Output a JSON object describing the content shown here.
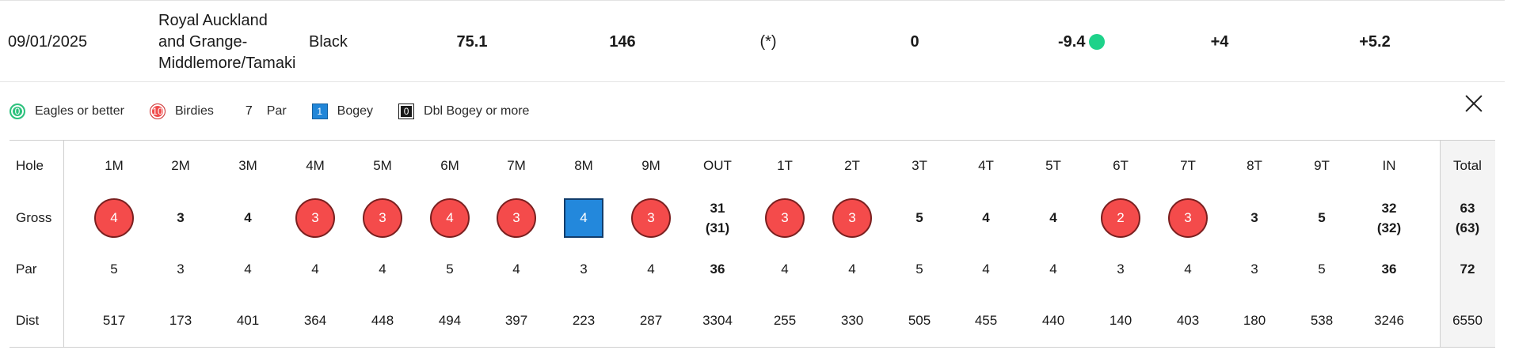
{
  "summary": {
    "date": "09/01/2025",
    "course": "Royal Auckland\nand Grange-\nMiddlemore/Tamaki",
    "tee": "Black",
    "rating": "75.1",
    "slope": "146",
    "flag": "(*)",
    "pcc": "0",
    "differential": "-9.4",
    "differential_dot_color": "#1ed28a",
    "adjustment": "+4",
    "index_change": "+5.2"
  },
  "legend": {
    "eagle_label": "Eagles or better",
    "eagle_value": "0",
    "birdie_label": "Birdies",
    "birdie_value": "10",
    "par_label": "Par",
    "par_value": "7",
    "bogey_label": "Bogey",
    "bogey_value": "1",
    "dbl_label": "Dbl Bogey or more",
    "dbl_value": "0"
  },
  "card": {
    "row_labels": {
      "hole": "Hole",
      "gross": "Gross",
      "par": "Par",
      "dist": "Dist"
    },
    "columns": [
      {
        "hole": "1M",
        "gross": "4",
        "style": "birdie",
        "par": "5",
        "dist": "517"
      },
      {
        "hole": "2M",
        "gross": "3",
        "style": "par",
        "par": "3",
        "dist": "173"
      },
      {
        "hole": "3M",
        "gross": "4",
        "style": "par",
        "par": "4",
        "dist": "401"
      },
      {
        "hole": "4M",
        "gross": "3",
        "style": "birdie",
        "par": "4",
        "dist": "364"
      },
      {
        "hole": "5M",
        "gross": "3",
        "style": "birdie",
        "par": "4",
        "dist": "448"
      },
      {
        "hole": "6M",
        "gross": "4",
        "style": "birdie",
        "par": "5",
        "dist": "494"
      },
      {
        "hole": "7M",
        "gross": "3",
        "style": "birdie",
        "par": "4",
        "dist": "397"
      },
      {
        "hole": "8M",
        "gross": "4",
        "style": "bogey",
        "par": "3",
        "dist": "223"
      },
      {
        "hole": "9M",
        "gross": "3",
        "style": "birdie",
        "par": "4",
        "dist": "287"
      },
      {
        "hole": "OUT",
        "gross": "31\n(31)",
        "style": "total",
        "par": "36",
        "dist": "3304"
      },
      {
        "hole": "1T",
        "gross": "3",
        "style": "birdie",
        "par": "4",
        "dist": "255"
      },
      {
        "hole": "2T",
        "gross": "3",
        "style": "birdie",
        "par": "4",
        "dist": "330"
      },
      {
        "hole": "3T",
        "gross": "5",
        "style": "par",
        "par": "5",
        "dist": "505"
      },
      {
        "hole": "4T",
        "gross": "4",
        "style": "par",
        "par": "4",
        "dist": "455"
      },
      {
        "hole": "5T",
        "gross": "4",
        "style": "par",
        "par": "4",
        "dist": "440"
      },
      {
        "hole": "6T",
        "gross": "2",
        "style": "birdie",
        "par": "3",
        "dist": "140"
      },
      {
        "hole": "7T",
        "gross": "3",
        "style": "birdie",
        "par": "4",
        "dist": "403"
      },
      {
        "hole": "8T",
        "gross": "3",
        "style": "par",
        "par": "3",
        "dist": "180"
      },
      {
        "hole": "9T",
        "gross": "5",
        "style": "par",
        "par": "5",
        "dist": "538"
      },
      {
        "hole": "IN",
        "gross": "32\n(32)",
        "style": "total",
        "par": "36",
        "dist": "3246"
      },
      {
        "hole": "Total",
        "gross": "63\n(63)",
        "style": "total",
        "par": "72",
        "dist": "6550"
      }
    ]
  },
  "colors": {
    "birdie": "#f44b4b",
    "bogey": "#2388dc",
    "eagle": "#2ec27e",
    "double_bogey": "#1a1a1a"
  }
}
